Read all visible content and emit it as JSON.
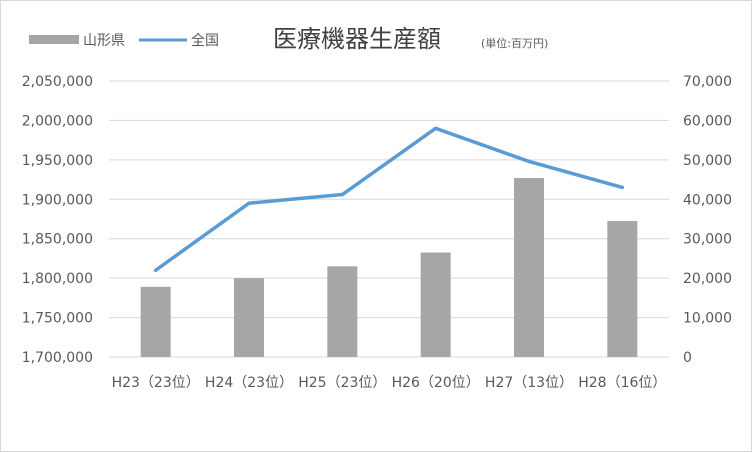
{
  "chart_data": {
    "type": "bar",
    "title": "医療機器生産額",
    "unit": "(単位:百万円)",
    "categories": [
      "H23（23位）",
      "H24（23位）",
      "H25（23位）",
      "H26（20位）",
      "H27（13位）",
      "H28（16位）"
    ],
    "series": [
      {
        "name": "山形県",
        "type": "bar",
        "axis": "right",
        "color": "#a6a6a6",
        "values": [
          17800,
          20000,
          23000,
          26500,
          45400,
          34500
        ]
      },
      {
        "name": "全国",
        "type": "line",
        "axis": "left",
        "color": "#5b9bd5",
        "values": [
          1810000,
          1895000,
          1906000,
          1990000,
          1948000,
          1915000
        ]
      }
    ],
    "left_axis": {
      "min": 1700000,
      "max": 2050000,
      "step": 50000,
      "tick_labels": [
        "1,700,000",
        "1,750,000",
        "1,800,000",
        "1,850,000",
        "1,900,000",
        "1,950,000",
        "2,000,000",
        "2,050,000"
      ]
    },
    "right_axis": {
      "min": 0,
      "max": 70000,
      "step": 10000,
      "tick_labels": [
        "0",
        "10,000",
        "20,000",
        "30,000",
        "40,000",
        "50,000",
        "60,000",
        "70,000"
      ]
    },
    "grid": true,
    "legend_position": "top-left"
  }
}
